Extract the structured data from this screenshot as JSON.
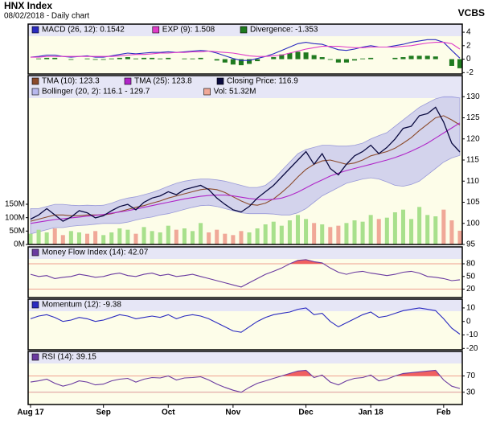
{
  "header": {
    "title": "HNX Index",
    "subtitle": "08/02/2018 - Daily chart",
    "brand": "VCBS"
  },
  "chart_data": [
    {
      "type": "line",
      "ylim": [
        -2.2,
        5.2
      ],
      "yticks": [
        -2,
        0,
        2,
        4
      ],
      "series": [
        {
          "name": "MACD (26, 12): 0.1542",
          "kind": "line",
          "color": "#2a2ac0",
          "values": [
            0.3,
            0.4,
            0.6,
            0.6,
            0.4,
            0.3,
            0.4,
            0.5,
            0.3,
            0.3,
            0.5,
            0.7,
            0.9,
            0.8,
            0.9,
            1.0,
            1.0,
            1.1,
            1.0,
            1.1,
            1.2,
            1.3,
            1.2,
            0.9,
            0.5,
            0.1,
            -0.2,
            -0.2,
            0.1,
            0.4,
            0.8,
            1.3,
            1.8,
            2.3,
            2.5,
            2.3,
            2.2,
            1.8,
            1.4,
            1.3,
            1.5,
            1.8,
            2.0,
            1.8,
            1.8,
            2.0,
            2.2,
            2.5,
            2.7,
            2.9,
            2.9,
            2.5,
            1.3,
            0.15
          ]
        },
        {
          "name": "EXP (9): 1.508",
          "kind": "line",
          "color": "#e03cc8",
          "values": [
            0.3,
            0.3,
            0.4,
            0.4,
            0.4,
            0.4,
            0.4,
            0.4,
            0.4,
            0.4,
            0.4,
            0.5,
            0.6,
            0.7,
            0.7,
            0.8,
            0.9,
            0.9,
            1.0,
            1.0,
            1.1,
            1.1,
            1.2,
            1.1,
            1.0,
            0.9,
            0.7,
            0.5,
            0.4,
            0.4,
            0.5,
            0.6,
            0.9,
            1.2,
            1.5,
            1.7,
            1.9,
            1.9,
            1.9,
            1.8,
            1.7,
            1.7,
            1.8,
            1.8,
            1.8,
            1.8,
            1.9,
            2.0,
            2.2,
            2.4,
            2.5,
            2.5,
            2.3,
            1.5
          ]
        },
        {
          "name": "Divergence: -1.353",
          "kind": "bar",
          "color": "#1f7a1f",
          "values": [
            0,
            0.1,
            0.2,
            0.2,
            0,
            -0.1,
            0,
            0.1,
            -0.1,
            -0.1,
            0.1,
            0.2,
            0.3,
            0.1,
            0.2,
            0.2,
            0.1,
            0.2,
            0,
            0.1,
            0.1,
            0.2,
            0,
            -0.2,
            -0.5,
            -0.8,
            -0.9,
            -0.7,
            -0.3,
            0,
            0.3,
            0.7,
            0.9,
            1.1,
            1.0,
            0.6,
            0.3,
            -0.1,
            -0.5,
            -0.5,
            -0.2,
            0.1,
            0.2,
            0,
            0,
            0.2,
            0.3,
            0.5,
            0.5,
            0.5,
            0.4,
            0,
            -1.0,
            -1.35
          ]
        }
      ]
    },
    {
      "type": "line",
      "ylim": [
        95,
        135
      ],
      "yticks": [
        95,
        100,
        105,
        110,
        115,
        120,
        125,
        130
      ],
      "y2lim": [
        0,
        630
      ],
      "y2ticks": [
        {
          "value": 0,
          "label": "0M"
        },
        {
          "value": 50,
          "label": "50M"
        },
        {
          "value": 100,
          "label": "100M"
        },
        {
          "value": 150,
          "label": "150M"
        }
      ],
      "series": [
        {
          "name": "TMA (10): 123.3",
          "kind": "line",
          "color": "#8b4a2b",
          "values": [
            100.5,
            101,
            101.5,
            102,
            102,
            101.8,
            101.8,
            102,
            102,
            102,
            102.3,
            102.8,
            103.3,
            103.8,
            104.2,
            104.8,
            105.3,
            106,
            106.5,
            107,
            107.5,
            108,
            108.2,
            108,
            107.3,
            106.3,
            105.3,
            104.5,
            104.3,
            104.8,
            105.8,
            107.3,
            109,
            111,
            112.8,
            114,
            114.8,
            115,
            114.5,
            114,
            114.3,
            115,
            116,
            116.5,
            117,
            117.8,
            119,
            120.3,
            122,
            123.5,
            125,
            125.5,
            124.5,
            123.3
          ]
        },
        {
          "name": "TMA (25): 123.8",
          "kind": "line",
          "color": "#b026c8",
          "values": [
            100,
            100.3,
            100.6,
            100.9,
            101.1,
            101.3,
            101.5,
            101.7,
            101.9,
            102.1,
            102.4,
            102.7,
            103,
            103.4,
            103.8,
            104.2,
            104.6,
            105,
            105.4,
            105.8,
            106.1,
            106.4,
            106.6,
            106.7,
            106.7,
            106.5,
            106.2,
            105.9,
            105.7,
            105.6,
            105.7,
            106,
            106.6,
            107.4,
            108.4,
            109.4,
            110.3,
            111.2,
            111.9,
            112.5,
            113,
            113.5,
            114,
            114.5,
            115,
            115.6,
            116.3,
            117.1,
            118,
            119,
            120.2,
            121.4,
            122.6,
            123.8
          ]
        },
        {
          "name": "Closing Price: 116.9",
          "kind": "price",
          "color": "#0a0a40",
          "values": [
            101,
            102,
            103.5,
            102,
            100.5,
            101.5,
            103,
            102.5,
            101.3,
            101.8,
            103,
            104,
            104.5,
            103.2,
            105,
            106,
            106.5,
            107.5,
            106.8,
            108,
            108.5,
            109,
            108,
            106,
            104.5,
            103.2,
            102.7,
            104,
            106,
            107.5,
            109,
            111,
            113,
            115,
            117,
            114,
            116.5,
            113,
            111.5,
            114,
            116,
            117,
            118.5,
            116.5,
            118,
            120,
            122.5,
            123,
            125.5,
            126,
            127.5,
            124,
            119,
            116.9
          ]
        },
        {
          "name": "Bollinger (20, 2): 116.1 - 129.7",
          "kind": "band",
          "color": "#b8b8ee",
          "upper": [
            103.5,
            103.5,
            104,
            104.5,
            104.5,
            104.3,
            104.2,
            104.3,
            104.2,
            104.3,
            104.8,
            105.5,
            106,
            106.3,
            106.8,
            107.3,
            108,
            108.8,
            109.5,
            110,
            110.3,
            110.5,
            110.5,
            110.3,
            110,
            109.5,
            109,
            108.5,
            108.5,
            109,
            110.5,
            112.5,
            114.5,
            116.5,
            117.5,
            118,
            118.5,
            118.5,
            118.3,
            118.3,
            118.5,
            119,
            120,
            120.8,
            121.5,
            123,
            124.5,
            126,
            127.5,
            128.5,
            129.5,
            130,
            130,
            129.7
          ],
          "lower": [
            97.5,
            98,
            98.5,
            99,
            99,
            99.3,
            99.5,
            99.6,
            99.8,
            100,
            100,
            100,
            100.3,
            100.8,
            101.2,
            101.5,
            102,
            102.3,
            102.8,
            103.3,
            103.8,
            104.2,
            104.3,
            104,
            103.5,
            103,
            102.5,
            102.3,
            102.3,
            102.3,
            102.2,
            102,
            102,
            102.5,
            103.5,
            105,
            106.5,
            107.5,
            108.5,
            109.5,
            110,
            110.5,
            110.8,
            110.5,
            109.8,
            109,
            108.8,
            109.2,
            110,
            111.5,
            113,
            114.5,
            115.5,
            116.1
          ]
        },
        {
          "name": "Vol: 51.32M",
          "kind": "volume",
          "axis": "y2",
          "color": "#f0a898",
          "up_color": "#a8e08c",
          "down_color": "#f0a898",
          "values": [
            40,
            55,
            45,
            60,
            35,
            50,
            45,
            40,
            50,
            35,
            45,
            60,
            55,
            40,
            65,
            50,
            45,
            70,
            55,
            60,
            50,
            80,
            45,
            55,
            40,
            35,
            50,
            45,
            60,
            75,
            85,
            70,
            90,
            110,
            95,
            80,
            75,
            65,
            70,
            80,
            90,
            85,
            110,
            95,
            100,
            120,
            130,
            95,
            140,
            110,
            105,
            130,
            90,
            51.32
          ]
        }
      ]
    },
    {
      "type": "line",
      "ylim": [
        0,
        120
      ],
      "yticks": [
        20,
        50,
        80
      ],
      "series": [
        {
          "name": "Money Flow Index (14): 42.07",
          "kind": "line",
          "color": "#6a3aa0",
          "values": [
            55,
            50,
            52,
            45,
            48,
            50,
            55,
            52,
            48,
            50,
            55,
            58,
            52,
            50,
            55,
            58,
            52,
            55,
            50,
            52,
            55,
            50,
            45,
            40,
            35,
            30,
            25,
            35,
            45,
            55,
            62,
            70,
            80,
            88,
            90,
            85,
            82,
            70,
            60,
            55,
            60,
            62,
            58,
            55,
            52,
            55,
            60,
            62,
            58,
            50,
            48,
            45,
            40,
            42.07
          ]
        }
      ]
    },
    {
      "type": "line",
      "ylim": [
        -21,
        16.5
      ],
      "yticks": [
        -20,
        -10,
        0,
        10
      ],
      "series": [
        {
          "name": "Momentum (12): -9.38",
          "kind": "line",
          "color": "#2a2ac0",
          "values": [
            2,
            4,
            5,
            3,
            0,
            1,
            3,
            2,
            0,
            1,
            3,
            5,
            4,
            2,
            3,
            4,
            3,
            5,
            2,
            4,
            5,
            4,
            2,
            -1,
            -4,
            -7,
            -8,
            -4,
            0,
            3,
            5,
            6,
            7,
            9,
            10,
            5,
            6,
            0,
            -4,
            -1,
            2,
            5,
            7,
            3,
            4,
            6,
            8,
            9,
            10,
            9,
            8,
            2,
            -5,
            -9.38
          ]
        }
      ]
    },
    {
      "type": "line",
      "ylim": [
        0,
        130
      ],
      "yticks": [
        30,
        70
      ],
      "categories": [
        "Aug 17",
        null,
        null,
        null,
        null,
        null,
        null,
        null,
        null,
        "Sep",
        null,
        null,
        null,
        null,
        null,
        null,
        null,
        "Oct",
        null,
        null,
        null,
        null,
        null,
        null,
        null,
        "Nov",
        null,
        null,
        null,
        null,
        null,
        null,
        null,
        null,
        "Dec",
        null,
        null,
        null,
        null,
        null,
        null,
        null,
        "Jan 18",
        null,
        null,
        null,
        null,
        null,
        null,
        null,
        null,
        "Feb",
        null,
        null
      ],
      "series": [
        {
          "name": "RSI (14): 39.15",
          "kind": "line",
          "color": "#6a3aa0",
          "values": [
            55,
            58,
            62,
            52,
            45,
            50,
            58,
            55,
            48,
            50,
            58,
            62,
            64,
            55,
            62,
            66,
            65,
            70,
            60,
            65,
            66,
            68,
            60,
            50,
            42,
            35,
            30,
            42,
            52,
            58,
            64,
            70,
            76,
            82,
            84,
            66,
            72,
            55,
            48,
            58,
            64,
            66,
            72,
            58,
            62,
            70,
            76,
            78,
            80,
            82,
            84,
            60,
            45,
            39.15
          ]
        }
      ]
    }
  ]
}
